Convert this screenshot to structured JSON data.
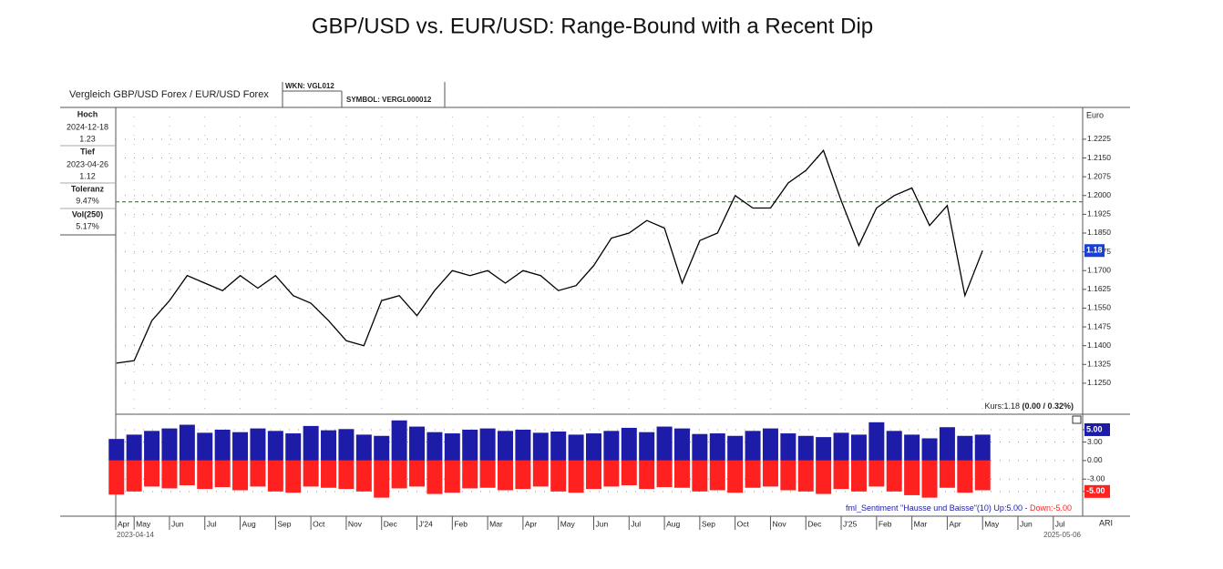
{
  "title": "GBP/USD vs. EUR/USD: Range-Bound with a Recent Dip",
  "header": {
    "name": "Vergleich GBP/USD Forex / EUR/USD Forex",
    "wkn": "WKN: VGL012",
    "symbol": "SYMBOL: VERGL000012"
  },
  "info": {
    "high_label": "Hoch",
    "high_date": "2024-12-18",
    "high_value": "1.23",
    "low_label": "Tief",
    "low_date": "2023-04-26",
    "low_value": "1.12",
    "tolerance_label": "Toleranz",
    "tolerance_value": "9.47%",
    "vol_label": "Vol(250)",
    "vol_value": "5.17%"
  },
  "chart_data": [
    {
      "type": "line",
      "unit_label": "Euro",
      "x": [
        0.5,
        1,
        1.5,
        2,
        2.5,
        3,
        3.5,
        4,
        4.5,
        5,
        5.5,
        6,
        6.5,
        7,
        7.5,
        8,
        8.5,
        9,
        9.5,
        10,
        10.5,
        11,
        11.5,
        12,
        12.5,
        13,
        13.5,
        14,
        14.5,
        15,
        15.5,
        16,
        16.5,
        17,
        17.5,
        18,
        18.5,
        19,
        19.5,
        20,
        20.5,
        21,
        21.5,
        22,
        22.5,
        23,
        23.5,
        24,
        24.5,
        25
      ],
      "values": [
        1.133,
        1.134,
        1.15,
        1.158,
        1.168,
        1.165,
        1.162,
        1.168,
        1.163,
        1.168,
        1.16,
        1.157,
        1.15,
        1.142,
        1.14,
        1.158,
        1.16,
        1.152,
        1.162,
        1.17,
        1.168,
        1.17,
        1.165,
        1.17,
        1.168,
        1.162,
        1.164,
        1.172,
        1.183,
        1.185,
        1.19,
        1.187,
        1.165,
        1.182,
        1.185,
        1.2,
        1.195,
        1.195,
        1.205,
        1.21,
        1.218,
        1.198,
        1.18,
        1.195,
        1.2,
        1.203,
        1.188,
        1.196,
        1.16,
        1.178
      ],
      "color": "#000000",
      "xlim": [
        0.48,
        27.83
      ],
      "ylim": [
        1.1126,
        1.2352
      ],
      "yticks": [
        {
          "value": 1.125,
          "label": "1.1250"
        },
        {
          "value": 1.1325,
          "label": "1.1325"
        },
        {
          "value": 1.14,
          "label": "1.1400"
        },
        {
          "value": 1.1475,
          "label": "1.1475"
        },
        {
          "value": 1.155,
          "label": "1.1550"
        },
        {
          "value": 1.1625,
          "label": "1.1625"
        },
        {
          "value": 1.17,
          "label": "1.1700"
        },
        {
          "value": 1.1775,
          "label": "1.1775"
        },
        {
          "value": 1.185,
          "label": "1.1850"
        },
        {
          "value": 1.1925,
          "label": "1.1925"
        },
        {
          "value": 1.2,
          "label": "1.2000"
        },
        {
          "value": 1.2075,
          "label": "1.2075"
        },
        {
          "value": 1.215,
          "label": "1.2150"
        },
        {
          "value": 1.2225,
          "label": "1.2225"
        }
      ],
      "grid": true,
      "reference_line": {
        "value": 1.1975,
        "color": "#2e9e2e"
      },
      "current_price": {
        "value": 1.178,
        "label": "1.18",
        "color": "#1a3fd6"
      },
      "price_note": "Kurs:1.18 ",
      "price_change": "(0.00 / 0.32%)"
    },
    {
      "type": "bar",
      "series": [
        {
          "color": "#1c1ca8",
          "values": [
            3.5,
            4.2,
            4.8,
            5.2,
            5.8,
            4.5,
            5.0,
            4.6,
            5.2,
            4.8,
            4.4,
            5.6,
            4.9,
            5.1,
            4.2,
            4.0,
            6.5,
            5.5,
            4.6,
            4.4,
            5.0,
            5.2,
            4.8,
            5.0,
            4.5,
            4.7,
            4.2,
            4.4,
            4.8,
            5.3,
            4.6,
            5.5,
            5.2,
            4.3,
            4.4,
            4.0,
            4.8,
            5.2,
            4.4,
            4.0,
            3.8,
            4.5,
            4.2,
            6.2,
            4.8,
            4.2,
            3.6,
            5.4,
            4.0,
            4.2
          ]
        },
        {
          "color": "#ff2020",
          "values": [
            -5.5,
            -5.0,
            -4.2,
            -4.5,
            -4.0,
            -4.6,
            -4.3,
            -4.8,
            -4.2,
            -5.0,
            -5.2,
            -4.2,
            -4.4,
            -4.6,
            -5.0,
            -6.0,
            -4.5,
            -4.2,
            -5.4,
            -5.2,
            -4.5,
            -4.4,
            -4.8,
            -4.6,
            -4.2,
            -5.0,
            -5.2,
            -4.6,
            -4.2,
            -4.0,
            -4.6,
            -4.3,
            -4.4,
            -5.0,
            -4.8,
            -5.2,
            -4.4,
            -4.2,
            -4.8,
            -5.0,
            -5.4,
            -4.6,
            -5.0,
            -4.2,
            -5.0,
            -5.6,
            -6.0,
            -4.4,
            -5.2,
            -4.8
          ]
        }
      ],
      "xlim": [
        0.48,
        27.83
      ],
      "ylim": [
        -9,
        7.5
      ],
      "yticks": [
        {
          "value": 5,
          "label": "5.00"
        },
        {
          "value": 3,
          "label": "3.00"
        },
        {
          "value": 0,
          "label": "0.00"
        },
        {
          "value": -3,
          "label": "-3.00"
        },
        {
          "value": -5,
          "label": "-5.00"
        }
      ],
      "level_labels": [
        {
          "value": 5,
          "label": "5.00",
          "color": "#1c1ca8"
        },
        {
          "value": -5,
          "label": "-5.00",
          "color": "#ff2020"
        }
      ],
      "legend": [
        "fml_Sentiment \"Hausse und Baisse\"(10) Up:5.00 - ",
        "Down:-5.00"
      ],
      "xticks": [
        {
          "value": 0.48,
          "label": "Apr"
        },
        {
          "value": 1,
          "label": "May"
        },
        {
          "value": 2,
          "label": "Jun"
        },
        {
          "value": 3,
          "label": "Jul"
        },
        {
          "value": 4,
          "label": "Aug"
        },
        {
          "value": 5,
          "label": "Sep"
        },
        {
          "value": 6,
          "label": "Oct"
        },
        {
          "value": 7,
          "label": "Nov"
        },
        {
          "value": 8,
          "label": "Dec"
        },
        {
          "value": 9,
          "label": "J'24"
        },
        {
          "value": 10,
          "label": "Feb"
        },
        {
          "value": 11,
          "label": "Mar"
        },
        {
          "value": 12,
          "label": "Apr"
        },
        {
          "value": 13,
          "label": "May"
        },
        {
          "value": 14,
          "label": "Jun"
        },
        {
          "value": 15,
          "label": "Jul"
        },
        {
          "value": 16,
          "label": "Aug"
        },
        {
          "value": 17,
          "label": "Sep"
        },
        {
          "value": 18,
          "label": "Oct"
        },
        {
          "value": 19,
          "label": "Nov"
        },
        {
          "value": 20,
          "label": "Dec"
        },
        {
          "value": 21,
          "label": "J'25"
        },
        {
          "value": 22,
          "label": "Feb"
        },
        {
          "value": 23,
          "label": "Mar"
        },
        {
          "value": 24,
          "label": "Apr"
        },
        {
          "value": 25,
          "label": "May"
        },
        {
          "value": 26,
          "label": "Jun"
        },
        {
          "value": 27,
          "label": "Jul"
        }
      ]
    }
  ],
  "footer": {
    "start_date": "2023-04-14",
    "end_date": "2025-05-06",
    "source": "ARI"
  }
}
